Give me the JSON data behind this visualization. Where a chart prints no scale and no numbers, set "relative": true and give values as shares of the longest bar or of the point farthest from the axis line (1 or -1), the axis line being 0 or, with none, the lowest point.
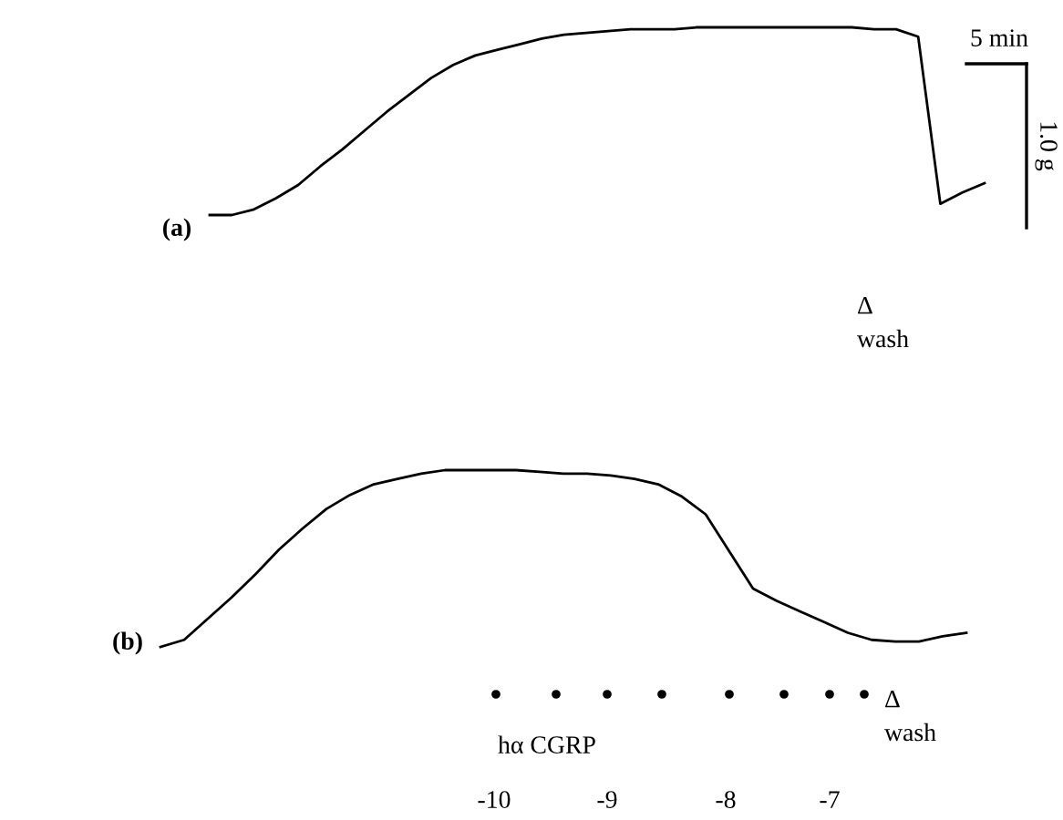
{
  "chart_data": [
    {
      "type": "line",
      "relative": true,
      "color": "#000000",
      "categories": [
        null,
        null,
        null,
        null,
        null,
        null,
        null,
        null,
        null,
        null,
        null,
        null,
        null,
        null,
        null,
        null,
        null,
        null,
        null,
        null,
        null,
        null,
        null,
        null,
        null,
        null,
        null,
        null,
        null,
        null,
        null,
        null,
        null,
        null,
        null,
        null
      ],
      "values": [
        0,
        0,
        0.03,
        0.09,
        0.16,
        0.26,
        0.35,
        0.45,
        0.55,
        0.64,
        0.73,
        0.8,
        0.85,
        0.88,
        0.91,
        0.94,
        0.96,
        0.97,
        0.98,
        0.99,
        0.99,
        0.99,
        1,
        1,
        1,
        1,
        1,
        1,
        1,
        1,
        0.99,
        0.99,
        0.95,
        0.06,
        0.12,
        0.17
      ],
      "annotations": [
        "(a)",
        "Δ\nwash",
        "5 min",
        "1.0 g"
      ]
    },
    {
      "type": "line",
      "relative": true,
      "color": "#000000",
      "categories": [
        null,
        null,
        null,
        null,
        null,
        null,
        null,
        null,
        null,
        null,
        null,
        null,
        null,
        null,
        null,
        null,
        null,
        null,
        null,
        null,
        null,
        null,
        null,
        null,
        null,
        null,
        null,
        null,
        null,
        null,
        null,
        null,
        null,
        null,
        null
      ],
      "values": [
        0,
        0.04,
        0.16,
        0.28,
        0.41,
        0.55,
        0.67,
        0.78,
        0.86,
        0.92,
        0.95,
        0.98,
        1,
        1,
        1,
        1,
        0.99,
        0.98,
        0.98,
        0.97,
        0.95,
        0.92,
        0.85,
        0.75,
        0.54,
        0.33,
        0.26,
        0.2,
        0.14,
        0.08,
        0.04,
        0.03,
        0.03,
        0.06,
        0.08
      ],
      "annotations": [
        "(b)",
        "hα CGRP",
        "-10",
        "-9",
        "-8",
        "-7",
        "Δ\nwash"
      ]
    }
  ]
}
